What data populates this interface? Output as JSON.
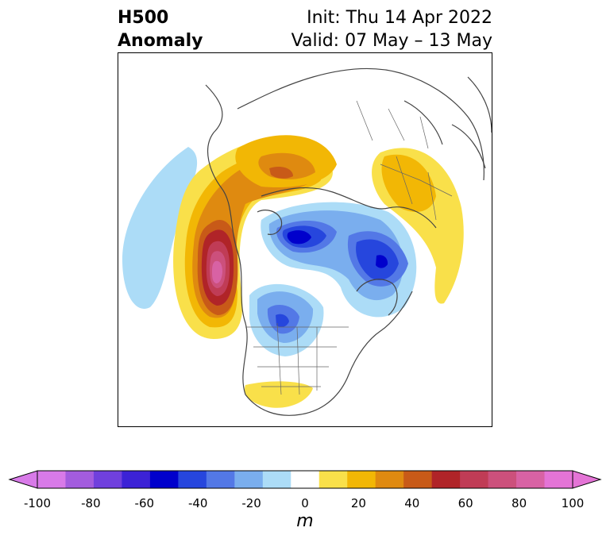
{
  "title": {
    "left_line1": "H500",
    "left_line2": "Anomaly",
    "init": "Init: Thu 14 Apr 2022",
    "valid": "Valid: 07 May – 13 May"
  },
  "colorbar": {
    "unit": "m",
    "levels": [
      -100,
      -90,
      -80,
      -70,
      -60,
      -50,
      -40,
      -30,
      -20,
      -10,
      10,
      20,
      30,
      40,
      50,
      60,
      70,
      80,
      90,
      100
    ],
    "colors": [
      "#d87ae8",
      "#a35cde",
      "#7040dd",
      "#3c22d6",
      "#0000cc",
      "#2646dd",
      "#5378e6",
      "#7aaeee",
      "#acdcf7",
      "#ffffff",
      "#f9e04a",
      "#f2b705",
      "#df8a10",
      "#c85a18",
      "#b02428",
      "#c03c56",
      "#cc507c",
      "#d862a4",
      "#e474d6"
    ],
    "ticks": [
      "-100",
      "-80",
      "-60",
      "-40",
      "-20",
      "0",
      "20",
      "40",
      "60",
      "80",
      "100"
    ]
  },
  "map": {
    "projection": "north-polar-stereographic",
    "anomaly_centers": [
      {
        "region": "northeast-pacific-ridge",
        "peak_m": 100
      },
      {
        "region": "arctic-low-canada",
        "peak_m": -60
      },
      {
        "region": "siberian-low",
        "peak_m": -60
      },
      {
        "region": "hudson-bay-low",
        "peak_m": -40
      },
      {
        "region": "eurasia-ridge",
        "peak_m": 30
      },
      {
        "region": "arctic-ridge-north",
        "peak_m": 40
      },
      {
        "region": "gulf-of-mexico-ridge",
        "peak_m": 10
      }
    ]
  }
}
